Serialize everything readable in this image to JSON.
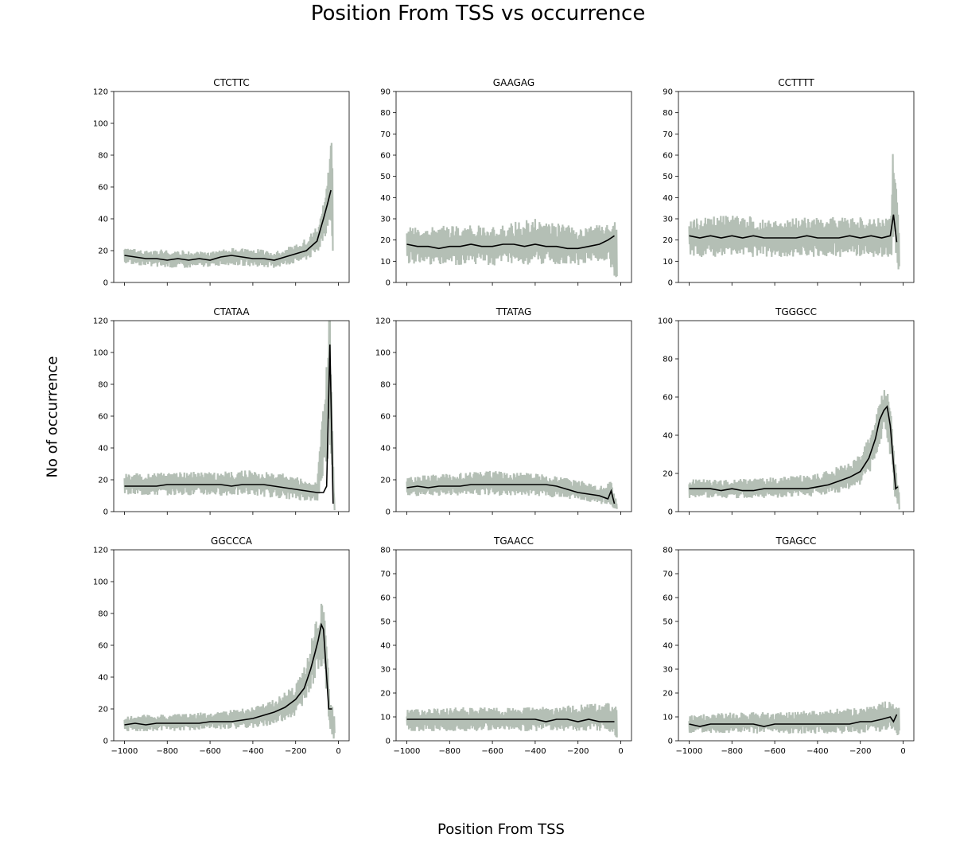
{
  "figure": {
    "title": "Position From TSS vs occurrence",
    "xlabel": "Position From TSS",
    "ylabel": "No of occurrence"
  },
  "colors": {
    "raw": "#b4bfb5",
    "smooth": "#000000"
  },
  "chart_data": [
    {
      "type": "line",
      "title": "CTCTTC",
      "xlim": [
        -1050,
        50
      ],
      "ylim": [
        0,
        120
      ],
      "yticks": [
        0,
        20,
        40,
        60,
        80,
        100,
        120
      ],
      "xticks": [
        -1000,
        -800,
        -600,
        -400,
        -200,
        0
      ],
      "smooth": [
        [
          -1000,
          17
        ],
        [
          -950,
          16
        ],
        [
          -900,
          15
        ],
        [
          -850,
          15
        ],
        [
          -800,
          14
        ],
        [
          -750,
          15
        ],
        [
          -700,
          14
        ],
        [
          -650,
          15
        ],
        [
          -600,
          14
        ],
        [
          -550,
          16
        ],
        [
          -500,
          17
        ],
        [
          -450,
          16
        ],
        [
          -400,
          15
        ],
        [
          -350,
          15
        ],
        [
          -300,
          14
        ],
        [
          -250,
          16
        ],
        [
          -200,
          18
        ],
        [
          -150,
          20
        ],
        [
          -100,
          26
        ],
        [
          -70,
          40
        ],
        [
          -50,
          50
        ],
        [
          -35,
          58
        ]
      ],
      "raw_envelope": [
        [
          -1000,
          22,
          12
        ],
        [
          -900,
          20,
          10
        ],
        [
          -800,
          21,
          9
        ],
        [
          -700,
          20,
          9
        ],
        [
          -600,
          19,
          10
        ],
        [
          -500,
          22,
          11
        ],
        [
          -400,
          22,
          10
        ],
        [
          -300,
          20,
          9
        ],
        [
          -200,
          24,
          12
        ],
        [
          -150,
          28,
          14
        ],
        [
          -100,
          35,
          18
        ],
        [
          -60,
          55,
          30
        ],
        [
          -40,
          80,
          40
        ],
        [
          -25,
          108,
          0
        ]
      ]
    },
    {
      "type": "line",
      "title": "GAAGAG",
      "xlim": [
        -1050,
        50
      ],
      "ylim": [
        0,
        90
      ],
      "yticks": [
        0,
        10,
        20,
        30,
        40,
        50,
        60,
        70,
        80,
        90
      ],
      "xticks": [
        -1000,
        -800,
        -600,
        -400,
        -200,
        0
      ],
      "smooth": [
        [
          -1000,
          18
        ],
        [
          -950,
          17
        ],
        [
          -900,
          17
        ],
        [
          -850,
          16
        ],
        [
          -800,
          17
        ],
        [
          -750,
          17
        ],
        [
          -700,
          18
        ],
        [
          -650,
          17
        ],
        [
          -600,
          17
        ],
        [
          -550,
          18
        ],
        [
          -500,
          18
        ],
        [
          -450,
          17
        ],
        [
          -400,
          18
        ],
        [
          -350,
          17
        ],
        [
          -300,
          17
        ],
        [
          -250,
          16
        ],
        [
          -200,
          16
        ],
        [
          -150,
          17
        ],
        [
          -100,
          18
        ],
        [
          -60,
          20
        ],
        [
          -30,
          22
        ]
      ],
      "raw_envelope": [
        [
          -1000,
          26,
          9
        ],
        [
          -800,
          27,
          8
        ],
        [
          -600,
          27,
          8
        ],
        [
          -400,
          30,
          8
        ],
        [
          -200,
          26,
          8
        ],
        [
          -60,
          28,
          10
        ],
        [
          -20,
          30,
          0
        ]
      ]
    },
    {
      "type": "line",
      "title": "CCTTTT",
      "xlim": [
        -1050,
        50
      ],
      "ylim": [
        0,
        90
      ],
      "yticks": [
        0,
        10,
        20,
        30,
        40,
        50,
        60,
        70,
        80,
        90
      ],
      "xticks": [
        -1000,
        -800,
        -600,
        -400,
        -200,
        0
      ],
      "smooth": [
        [
          -1000,
          22
        ],
        [
          -950,
          21
        ],
        [
          -900,
          22
        ],
        [
          -850,
          21
        ],
        [
          -800,
          22
        ],
        [
          -750,
          21
        ],
        [
          -700,
          22
        ],
        [
          -650,
          21
        ],
        [
          -600,
          21
        ],
        [
          -550,
          21
        ],
        [
          -500,
          21
        ],
        [
          -450,
          22
        ],
        [
          -400,
          21
        ],
        [
          -350,
          21
        ],
        [
          -300,
          21
        ],
        [
          -250,
          22
        ],
        [
          -200,
          21
        ],
        [
          -150,
          22
        ],
        [
          -100,
          21
        ],
        [
          -60,
          22
        ],
        [
          -45,
          32
        ],
        [
          -30,
          19
        ]
      ],
      "raw_envelope": [
        [
          -1000,
          30,
          12
        ],
        [
          -800,
          32,
          12
        ],
        [
          -600,
          30,
          12
        ],
        [
          -400,
          31,
          12
        ],
        [
          -200,
          31,
          12
        ],
        [
          -60,
          30,
          12
        ],
        [
          -45,
          71,
          15
        ],
        [
          -20,
          28,
          0
        ]
      ]
    },
    {
      "type": "line",
      "title": "CTATAA",
      "xlim": [
        -1050,
        50
      ],
      "ylim": [
        0,
        120
      ],
      "yticks": [
        0,
        20,
        40,
        60,
        80,
        100,
        120
      ],
      "xticks": [
        -1000,
        -800,
        -600,
        -400,
        -200,
        0
      ],
      "smooth": [
        [
          -1000,
          16
        ],
        [
          -950,
          16
        ],
        [
          -900,
          16
        ],
        [
          -850,
          16
        ],
        [
          -800,
          17
        ],
        [
          -750,
          17
        ],
        [
          -700,
          17
        ],
        [
          -650,
          17
        ],
        [
          -600,
          17
        ],
        [
          -550,
          17
        ],
        [
          -500,
          16
        ],
        [
          -450,
          17
        ],
        [
          -400,
          17
        ],
        [
          -350,
          17
        ],
        [
          -300,
          16
        ],
        [
          -250,
          15
        ],
        [
          -200,
          14
        ],
        [
          -150,
          13
        ],
        [
          -100,
          12
        ],
        [
          -70,
          12
        ],
        [
          -55,
          16
        ],
        [
          -40,
          105
        ],
        [
          -25,
          5
        ]
      ],
      "raw_envelope": [
        [
          -1000,
          24,
          10
        ],
        [
          -800,
          25,
          10
        ],
        [
          -600,
          25,
          10
        ],
        [
          -400,
          26,
          10
        ],
        [
          -250,
          24,
          8
        ],
        [
          -100,
          18,
          6
        ],
        [
          -40,
          130,
          40
        ],
        [
          -20,
          10,
          0
        ]
      ]
    },
    {
      "type": "line",
      "title": "TTATAG",
      "xlim": [
        -1050,
        50
      ],
      "ylim": [
        0,
        120
      ],
      "yticks": [
        0,
        20,
        40,
        60,
        80,
        100,
        120
      ],
      "xticks": [
        -1000,
        -800,
        -600,
        -400,
        -200,
        0
      ],
      "smooth": [
        [
          -1000,
          15
        ],
        [
          -950,
          16
        ],
        [
          -900,
          15
        ],
        [
          -850,
          16
        ],
        [
          -800,
          16
        ],
        [
          -750,
          16
        ],
        [
          -700,
          17
        ],
        [
          -650,
          17
        ],
        [
          -600,
          17
        ],
        [
          -550,
          17
        ],
        [
          -500,
          17
        ],
        [
          -450,
          17
        ],
        [
          -400,
          17
        ],
        [
          -350,
          17
        ],
        [
          -300,
          16
        ],
        [
          -250,
          14
        ],
        [
          -200,
          12
        ],
        [
          -150,
          11
        ],
        [
          -100,
          10
        ],
        [
          -60,
          8
        ],
        [
          -45,
          13
        ],
        [
          -30,
          5
        ]
      ],
      "raw_envelope": [
        [
          -1000,
          22,
          9
        ],
        [
          -800,
          24,
          10
        ],
        [
          -600,
          26,
          10
        ],
        [
          -400,
          24,
          10
        ],
        [
          -200,
          20,
          7
        ],
        [
          -100,
          16,
          5
        ],
        [
          -45,
          20,
          3
        ],
        [
          -20,
          6,
          0
        ]
      ]
    },
    {
      "type": "line",
      "title": "TGGGCC",
      "xlim": [
        -1050,
        50
      ],
      "ylim": [
        0,
        100
      ],
      "yticks": [
        0,
        20,
        40,
        60,
        80,
        100
      ],
      "xticks": [
        -1000,
        -800,
        -600,
        -400,
        -200,
        0
      ],
      "smooth": [
        [
          -1000,
          12
        ],
        [
          -950,
          12
        ],
        [
          -900,
          12
        ],
        [
          -850,
          11
        ],
        [
          -800,
          12
        ],
        [
          -750,
          11
        ],
        [
          -700,
          11
        ],
        [
          -650,
          12
        ],
        [
          -600,
          12
        ],
        [
          -550,
          12
        ],
        [
          -500,
          12
        ],
        [
          -450,
          12
        ],
        [
          -400,
          13
        ],
        [
          -350,
          14
        ],
        [
          -300,
          16
        ],
        [
          -250,
          18
        ],
        [
          -200,
          21
        ],
        [
          -160,
          28
        ],
        [
          -130,
          38
        ],
        [
          -110,
          48
        ],
        [
          -90,
          53
        ],
        [
          -75,
          55
        ],
        [
          -60,
          45
        ],
        [
          -45,
          25
        ],
        [
          -35,
          12
        ],
        [
          -25,
          13
        ]
      ],
      "raw_envelope": [
        [
          -1000,
          17,
          7
        ],
        [
          -800,
          17,
          7
        ],
        [
          -600,
          18,
          7
        ],
        [
          -400,
          20,
          8
        ],
        [
          -300,
          24,
          10
        ],
        [
          -200,
          30,
          14
        ],
        [
          -150,
          42,
          22
        ],
        [
          -100,
          62,
          38
        ],
        [
          -80,
          70,
          38
        ],
        [
          -60,
          58,
          28
        ],
        [
          -40,
          30,
          6
        ],
        [
          -20,
          12,
          0
        ]
      ]
    },
    {
      "type": "line",
      "title": "GGCCCA",
      "xlim": [
        -1050,
        50
      ],
      "ylim": [
        0,
        120
      ],
      "yticks": [
        0,
        20,
        40,
        60,
        80,
        100,
        120
      ],
      "xticks": [
        -1000,
        -800,
        -600,
        -400,
        -200,
        0
      ],
      "smooth": [
        [
          -1000,
          10
        ],
        [
          -950,
          11
        ],
        [
          -900,
          10
        ],
        [
          -850,
          11
        ],
        [
          -800,
          11
        ],
        [
          -750,
          11
        ],
        [
          -700,
          11
        ],
        [
          -650,
          11
        ],
        [
          -600,
          12
        ],
        [
          -550,
          12
        ],
        [
          -500,
          12
        ],
        [
          -450,
          13
        ],
        [
          -400,
          14
        ],
        [
          -350,
          16
        ],
        [
          -300,
          18
        ],
        [
          -250,
          21
        ],
        [
          -200,
          26
        ],
        [
          -160,
          33
        ],
        [
          -130,
          45
        ],
        [
          -110,
          55
        ],
        [
          -95,
          63
        ],
        [
          -80,
          73
        ],
        [
          -70,
          70
        ],
        [
          -55,
          40
        ],
        [
          -45,
          20
        ],
        [
          -30,
          20
        ]
      ],
      "raw_envelope": [
        [
          -1000,
          16,
          6
        ],
        [
          -800,
          17,
          6
        ],
        [
          -600,
          18,
          7
        ],
        [
          -400,
          21,
          8
        ],
        [
          -300,
          26,
          10
        ],
        [
          -200,
          36,
          16
        ],
        [
          -150,
          50,
          26
        ],
        [
          -100,
          78,
          42
        ],
        [
          -75,
          90,
          48
        ],
        [
          -60,
          80,
          30
        ],
        [
          -40,
          28,
          5
        ],
        [
          -20,
          18,
          0
        ]
      ]
    },
    {
      "type": "line",
      "title": "TGAACC",
      "xlim": [
        -1050,
        50
      ],
      "ylim": [
        0,
        80
      ],
      "yticks": [
        0,
        10,
        20,
        30,
        40,
        50,
        60,
        70,
        80
      ],
      "xticks": [
        -1000,
        -800,
        -600,
        -400,
        -200,
        0
      ],
      "smooth": [
        [
          -1000,
          9
        ],
        [
          -950,
          9
        ],
        [
          -900,
          9
        ],
        [
          -850,
          9
        ],
        [
          -800,
          9
        ],
        [
          -750,
          9
        ],
        [
          -700,
          9
        ],
        [
          -650,
          9
        ],
        [
          -600,
          9
        ],
        [
          -550,
          9
        ],
        [
          -500,
          9
        ],
        [
          -450,
          9
        ],
        [
          -400,
          9
        ],
        [
          -350,
          8
        ],
        [
          -300,
          9
        ],
        [
          -250,
          9
        ],
        [
          -200,
          8
        ],
        [
          -150,
          9
        ],
        [
          -100,
          8
        ],
        [
          -60,
          8
        ],
        [
          -30,
          8
        ]
      ],
      "raw_envelope": [
        [
          -1000,
          13,
          4
        ],
        [
          -800,
          14,
          4
        ],
        [
          -600,
          14,
          4
        ],
        [
          -400,
          14,
          4
        ],
        [
          -200,
          15,
          4
        ],
        [
          -60,
          16,
          4
        ],
        [
          -20,
          15,
          0
        ]
      ]
    },
    {
      "type": "line",
      "title": "TGAGCC",
      "xlim": [
        -1050,
        50
      ],
      "ylim": [
        0,
        80
      ],
      "yticks": [
        0,
        10,
        20,
        30,
        40,
        50,
        60,
        70,
        80
      ],
      "xticks": [
        -1000,
        -800,
        -600,
        -400,
        -200,
        0
      ],
      "smooth": [
        [
          -1000,
          7
        ],
        [
          -950,
          6
        ],
        [
          -900,
          7
        ],
        [
          -850,
          7
        ],
        [
          -800,
          7
        ],
        [
          -750,
          7
        ],
        [
          -700,
          7
        ],
        [
          -650,
          6
        ],
        [
          -600,
          7
        ],
        [
          -550,
          7
        ],
        [
          -500,
          7
        ],
        [
          -450,
          7
        ],
        [
          -400,
          7
        ],
        [
          -350,
          7
        ],
        [
          -300,
          7
        ],
        [
          -250,
          7
        ],
        [
          -200,
          8
        ],
        [
          -150,
          8
        ],
        [
          -100,
          9
        ],
        [
          -60,
          10
        ],
        [
          -45,
          8
        ],
        [
          -30,
          11
        ]
      ],
      "raw_envelope": [
        [
          -1000,
          11,
          3
        ],
        [
          -800,
          12,
          3
        ],
        [
          -600,
          12,
          3
        ],
        [
          -400,
          13,
          3
        ],
        [
          -200,
          14,
          3
        ],
        [
          -60,
          17,
          4
        ],
        [
          -20,
          16,
          0
        ]
      ]
    }
  ]
}
